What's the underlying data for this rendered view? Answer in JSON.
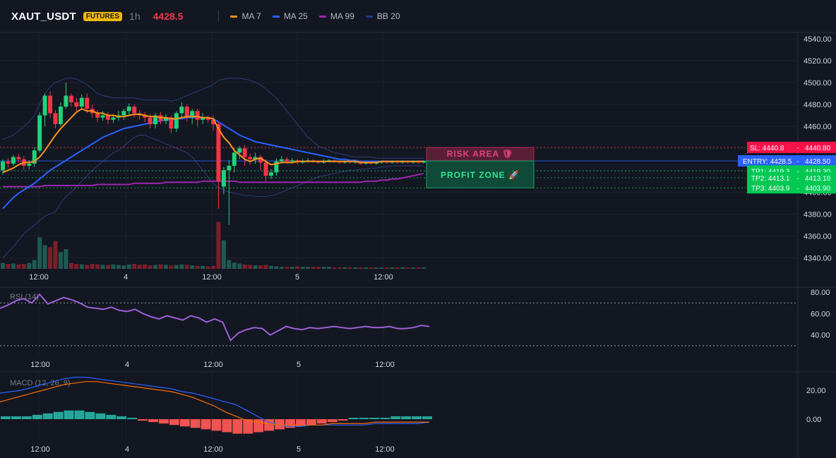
{
  "header": {
    "symbol": "XAUT_USDT",
    "badge": "FUTURES",
    "interval": "1h",
    "last_price": "4428.5",
    "legend": [
      {
        "label": "MA 7",
        "color": "#f7931a"
      },
      {
        "label": "MA 25",
        "color": "#2962ff"
      },
      {
        "label": "MA 99",
        "color": "#9c27b0"
      },
      {
        "label": "BB 20",
        "color": "#1e3a8a"
      }
    ]
  },
  "colors": {
    "background": "#131722",
    "up": "#26a69a",
    "up_candle": "#22d17a",
    "down": "#f23645",
    "grid": "#1e222d"
  },
  "x_axis_labels": [
    "12:00",
    "4",
    "12:00",
    "5",
    "12:00"
  ],
  "chart_data": {
    "type": "candlestick",
    "price_axis": {
      "min": 4330,
      "max": 4545,
      "ticks": [
        4340,
        4360,
        4380,
        4400,
        4420,
        4440,
        4460,
        4480,
        4500,
        4520,
        4540
      ],
      "tick_labels": [
        "4340.00",
        "4360.00",
        "4380.00",
        "4400.00",
        "4420.00",
        "4440.00",
        "4460.00",
        "4480.00",
        "4500.00",
        "4520.00",
        "4540.00"
      ]
    },
    "candles": [
      [
        4420,
        4428,
        4416,
        4430
      ],
      [
        4428,
        4426,
        4422,
        4431
      ],
      [
        4426,
        4432,
        4424,
        4434
      ],
      [
        4432,
        4430,
        4427,
        4435
      ],
      [
        4430,
        4424,
        4420,
        4433
      ],
      [
        4424,
        4426,
        4421,
        4429
      ],
      [
        4426,
        4438,
        4423,
        4441
      ],
      [
        4438,
        4470,
        4436,
        4473
      ],
      [
        4470,
        4488,
        4460,
        4490
      ],
      [
        4488,
        4472,
        4468,
        4492
      ],
      [
        4472,
        4462,
        4458,
        4475
      ],
      [
        4462,
        4478,
        4460,
        4482
      ],
      [
        4478,
        4488,
        4476,
        4500
      ],
      [
        4488,
        4482,
        4478,
        4490
      ],
      [
        4482,
        4478,
        4474,
        4486
      ],
      [
        4478,
        4486,
        4476,
        4489
      ],
      [
        4486,
        4476,
        4472,
        4490
      ],
      [
        4476,
        4472,
        4468,
        4480
      ],
      [
        4472,
        4468,
        4464,
        4475
      ],
      [
        4468,
        4470,
        4465,
        4474
      ],
      [
        4470,
        4466,
        4462,
        4473
      ],
      [
        4466,
        4468,
        4463,
        4471
      ],
      [
        4468,
        4470,
        4465,
        4474
      ],
      [
        4470,
        4474,
        4466,
        4476
      ],
      [
        4474,
        4478,
        4470,
        4481
      ],
      [
        4478,
        4472,
        4468,
        4480
      ],
      [
        4472,
        4470,
        4466,
        4475
      ],
      [
        4470,
        4468,
        4464,
        4473
      ],
      [
        4468,
        4462,
        4458,
        4471
      ],
      [
        4462,
        4470,
        4458,
        4472
      ],
      [
        4470,
        4465,
        4462,
        4473
      ],
      [
        4465,
        4468,
        4462,
        4471
      ],
      [
        4468,
        4458,
        4454,
        4470
      ],
      [
        4458,
        4472,
        4455,
        4474
      ],
      [
        4472,
        4478,
        4468,
        4482
      ],
      [
        4478,
        4468,
        4464,
        4480
      ],
      [
        4468,
        4474,
        4462,
        4476
      ],
      [
        4474,
        4466,
        4460,
        4476
      ],
      [
        4466,
        4468,
        4462,
        4472
      ],
      [
        4468,
        4466,
        4463,
        4470
      ],
      [
        4466,
        4462,
        4456,
        4470
      ],
      [
        4462,
        4410,
        4385,
        4464
      ],
      [
        4405,
        4420,
        4398,
        4423
      ],
      [
        4420,
        4424,
        4370,
        4429
      ],
      [
        4424,
        4436,
        4418,
        4440
      ],
      [
        4436,
        4440,
        4430,
        4442
      ],
      [
        4440,
        4432,
        4424,
        4443
      ],
      [
        4432,
        4430,
        4425,
        4435
      ],
      [
        4430,
        4432,
        4426,
        4436
      ],
      [
        4432,
        4427,
        4420,
        4434
      ],
      [
        4427,
        4415,
        4410,
        4430
      ],
      [
        4415,
        4418,
        4412,
        4421
      ],
      [
        4418,
        4428,
        4415,
        4431
      ],
      [
        4428,
        4430,
        4426,
        4433
      ],
      [
        4430,
        4428,
        4426,
        4432
      ],
      [
        4428,
        4429,
        4426,
        4431
      ],
      [
        4429,
        4427,
        4425,
        4430
      ],
      [
        4427,
        4428,
        4426,
        4430
      ],
      [
        4428,
        4429,
        4427,
        4431
      ],
      [
        4429,
        4428,
        4427,
        4430
      ],
      [
        4428,
        4427,
        4426,
        4429
      ],
      [
        4427,
        4428,
        4426,
        4430
      ],
      [
        4428,
        4429,
        4427,
        4430
      ],
      [
        4429,
        4428,
        4427,
        4430
      ],
      [
        4428,
        4427,
        4426,
        4429
      ],
      [
        4427,
        4428,
        4426,
        4429
      ],
      [
        4428,
        4427,
        4426,
        4429
      ],
      [
        4427,
        4428,
        4426,
        4429
      ],
      [
        4428,
        4426,
        4425,
        4429
      ],
      [
        4426,
        4427,
        4425,
        4428
      ],
      [
        4427,
        4426,
        4425,
        4428
      ],
      [
        4426,
        4427,
        4425,
        4428
      ],
      [
        4427,
        4428,
        4426,
        4429
      ],
      [
        4428,
        4427,
        4426,
        4429
      ],
      [
        4427,
        4428,
        4426,
        4429
      ],
      [
        4428,
        4427,
        4426,
        4429
      ],
      [
        4427,
        4428,
        4426,
        4429
      ],
      [
        4428,
        4427,
        4426,
        4429
      ],
      [
        4427,
        4428,
        4426,
        4429
      ],
      [
        4428,
        4427,
        4426,
        4429
      ],
      [
        4427,
        4428.5,
        4426,
        4429
      ]
    ],
    "candle_format": [
      "open",
      "close",
      "low",
      "high"
    ],
    "ma7": [
      4418,
      4420,
      4422,
      4425,
      4427,
      4427,
      4428,
      4432,
      4438,
      4445,
      4452,
      4458,
      4463,
      4468,
      4473,
      4476,
      4474,
      4474,
      4472,
      4472,
      4470,
      4470,
      4469,
      4469,
      4470,
      4471,
      4471,
      4470,
      4469,
      4469,
      4468,
      4468,
      4467,
      4467,
      4468,
      4469,
      4469,
      4469,
      4468,
      4468,
      4467,
      4458,
      4450,
      4445,
      4438,
      4434,
      4430,
      4428,
      4430,
      4431,
      4428,
      4425,
      4426,
      4427,
      4427,
      4427,
      4428,
      4428,
      4428,
      4428,
      4428,
      4428,
      4428,
      4428,
      4428,
      4428,
      4428,
      4428,
      4427,
      4427,
      4427,
      4427,
      4428,
      4428,
      4428,
      4428,
      4428,
      4428,
      4428,
      4428,
      4428
    ],
    "ma25": [
      4385,
      4390,
      4395,
      4399,
      4402,
      4405,
      4408,
      4412,
      4416,
      4420,
      4423,
      4426,
      4429,
      4432,
      4435,
      4438,
      4441,
      4444,
      4447,
      4450,
      4452,
      4454,
      4456,
      4458,
      4459,
      4460,
      4461,
      4462,
      4463,
      4464,
      4465,
      4466,
      4466,
      4467,
      4467,
      4468,
      4468,
      4468,
      4468,
      4468,
      4467,
      4464,
      4461,
      4458,
      4455,
      4452,
      4450,
      4448,
      4446,
      4445,
      4444,
      4443,
      4442,
      4441,
      4440,
      4439,
      4438,
      4437,
      4436,
      4435,
      4434,
      4433,
      4432,
      4431,
      4430,
      4430,
      4429,
      4429,
      4428,
      4428,
      4428,
      4428,
      4428,
      4428,
      4428,
      4428,
      4428,
      4428,
      4428,
      4428,
      4428
    ],
    "ma99": [
      4405,
      4405,
      4405,
      4405,
      4405,
      4405,
      4405,
      4405,
      4406,
      4406,
      4406,
      4406,
      4406,
      4406,
      4406,
      4406,
      4406,
      4406,
      4407,
      4407,
      4407,
      4407,
      4407,
      4407,
      4407,
      4408,
      4408,
      4408,
      4408,
      4408,
      4408,
      4409,
      4409,
      4409,
      4409,
      4409,
      4409,
      4409,
      4410,
      4410,
      4410,
      4410,
      4410,
      4410,
      4410,
      4409,
      4409,
      4409,
      4409,
      4409,
      4409,
      4409,
      4409,
      4409,
      4409,
      4409,
      4409,
      4409,
      4409,
      4409,
      4409,
      4409,
      4409,
      4409,
      4409,
      4409,
      4409,
      4409,
      4409,
      4410,
      4410,
      4410,
      4411,
      4411,
      4412,
      4412,
      4413,
      4414,
      4415,
      4416,
      4417
    ],
    "bb_upper": [
      4448,
      4450,
      4452,
      4456,
      4460,
      4464,
      4470,
      4480,
      4490,
      4496,
      4500,
      4502,
      4504,
      4504,
      4503,
      4501,
      4498,
      4494,
      4490,
      4488,
      4487,
      4486,
      4486,
      4486,
      4486,
      4486,
      4485,
      4484,
      4484,
      4484,
      4484,
      4484,
      4483,
      4484,
      4486,
      4488,
      4490,
      4492,
      4494,
      4496,
      4498,
      4502,
      4503,
      4504,
      4504,
      4504,
      4503,
      4502,
      4500,
      4498,
      4494,
      4490,
      4486,
      4480,
      4474,
      4468,
      4462,
      4456,
      4450,
      4446,
      4442,
      4440,
      4438,
      4436,
      4435,
      4434,
      4433,
      4432,
      4432,
      4432,
      4432,
      4431,
      4431,
      4431,
      4431,
      4431,
      4431,
      4431,
      4431,
      4431,
      4431
    ],
    "bb_lower": [
      4340,
      4345,
      4350,
      4356,
      4362,
      4366,
      4370,
      4374,
      4378,
      4380,
      4382,
      4390,
      4396,
      4400,
      4405,
      4410,
      4415,
      4420,
      4424,
      4428,
      4432,
      4436,
      4438,
      4442,
      4446,
      4450,
      4452,
      4452,
      4450,
      4448,
      4446,
      4444,
      4442,
      4440,
      4438,
      4436,
      4432,
      4426,
      4420,
      4414,
      4408,
      4404,
      4402,
      4400,
      4399,
      4398,
      4397,
      4397,
      4396,
      4396,
      4396,
      4397,
      4398,
      4400,
      4402,
      4404,
      4406,
      4408,
      4410,
      4412,
      4414,
      4415,
      4416,
      4417,
      4418,
      4419,
      4420,
      4420,
      4421,
      4421,
      4422,
      4422,
      4423,
      4423,
      4424,
      4424,
      4424,
      4424,
      4424,
      4424,
      4424
    ],
    "volumes": [
      12,
      10,
      11,
      9,
      10,
      12,
      18,
      64,
      48,
      44,
      56,
      34,
      40,
      12,
      10,
      9,
      8,
      10,
      9,
      8,
      8,
      9,
      8,
      7,
      9,
      10,
      8,
      9,
      7,
      8,
      9,
      8,
      7,
      8,
      9,
      8,
      7,
      6,
      6,
      5,
      6,
      95,
      58,
      18,
      13,
      11,
      9,
      8,
      7,
      7,
      8,
      6,
      5,
      4,
      4,
      4,
      5,
      4,
      4,
      4,
      4,
      4,
      4,
      3,
      3,
      3,
      3,
      3,
      3,
      3,
      3,
      3,
      3,
      3,
      3,
      3,
      3,
      3,
      3,
      3,
      3
    ],
    "rsi": {
      "title": "RSI (14)",
      "y_ticks": [
        40,
        60,
        80
      ],
      "y_tick_labels": [
        "40.00",
        "60.00",
        "80.00"
      ],
      "overbought": 70,
      "oversold": 30,
      "values": [
        65,
        68,
        72,
        74,
        70,
        78,
        69,
        72,
        75,
        73,
        70,
        66,
        65,
        64,
        66,
        63,
        62,
        64,
        60,
        57,
        55,
        58,
        56,
        54,
        58,
        56,
        52,
        55,
        52,
        35,
        42,
        45,
        47,
        46,
        40,
        44,
        48,
        46,
        45,
        47,
        46,
        47,
        48,
        47,
        46,
        47,
        48,
        47,
        47,
        48,
        46,
        46,
        47,
        49,
        48
      ]
    },
    "macd": {
      "title": "MACD (12, 26, 9)",
      "y_ticks": [
        0,
        20
      ],
      "y_tick_labels": [
        "0.00",
        "20.00"
      ],
      "macd_line": [
        18,
        19,
        20,
        22,
        24,
        26,
        28,
        29,
        29,
        28,
        27,
        26,
        25,
        24,
        23,
        22,
        21,
        19,
        18,
        16,
        14,
        12,
        10,
        6,
        2,
        -2,
        -4,
        -5,
        -5,
        -4,
        -4,
        -4,
        -4,
        -4,
        -4,
        -3,
        -3,
        -3,
        -3,
        -3,
        -2
      ],
      "signal_line": [
        12,
        14,
        16,
        18,
        20,
        22,
        24,
        25,
        26,
        26,
        25,
        24,
        23,
        22,
        21,
        20,
        19,
        17,
        15,
        12,
        9,
        5,
        2,
        -1,
        -2,
        -3,
        -4,
        -4,
        -4,
        -4,
        -4,
        -3,
        -3,
        -3,
        -3,
        -2,
        -2,
        -2,
        -2,
        -2,
        -2
      ],
      "histogram": [
        2,
        2,
        2,
        3,
        4,
        5,
        6,
        6,
        5,
        4,
        3,
        2,
        1,
        -1,
        -2,
        -3,
        -4,
        -5,
        -6,
        -7,
        -8,
        -9,
        -10,
        -10,
        -9,
        -8,
        -7,
        -6,
        -5,
        -4,
        -3,
        -2,
        -1,
        1,
        1,
        1,
        1,
        2,
        2,
        2,
        2
      ]
    }
  },
  "levels": [
    {
      "label": "SL: 4440.8",
      "price_label": "4440.80",
      "price": 4440.8,
      "color": "#f23645"
    },
    {
      "label": "ENTRY: 4428.5",
      "price_label": "4428.50",
      "price": 4428.5,
      "color": "#2962ff"
    },
    {
      "label": "TP1: 4419.3",
      "price_label": "4419.30",
      "price": 4419.3,
      "color": "#00c853"
    },
    {
      "label": "TP2: 4413.1",
      "price_label": "4413.10",
      "price": 4413.1,
      "color": "#00c853"
    },
    {
      "label": "TP3: 4403.9",
      "price_label": "4403.90",
      "price": 4403.9,
      "color": "#00c853"
    }
  ],
  "zones": {
    "risk_label": "RISK AREA 🛡",
    "profit_label": "PROFIT ZONE 🚀"
  }
}
